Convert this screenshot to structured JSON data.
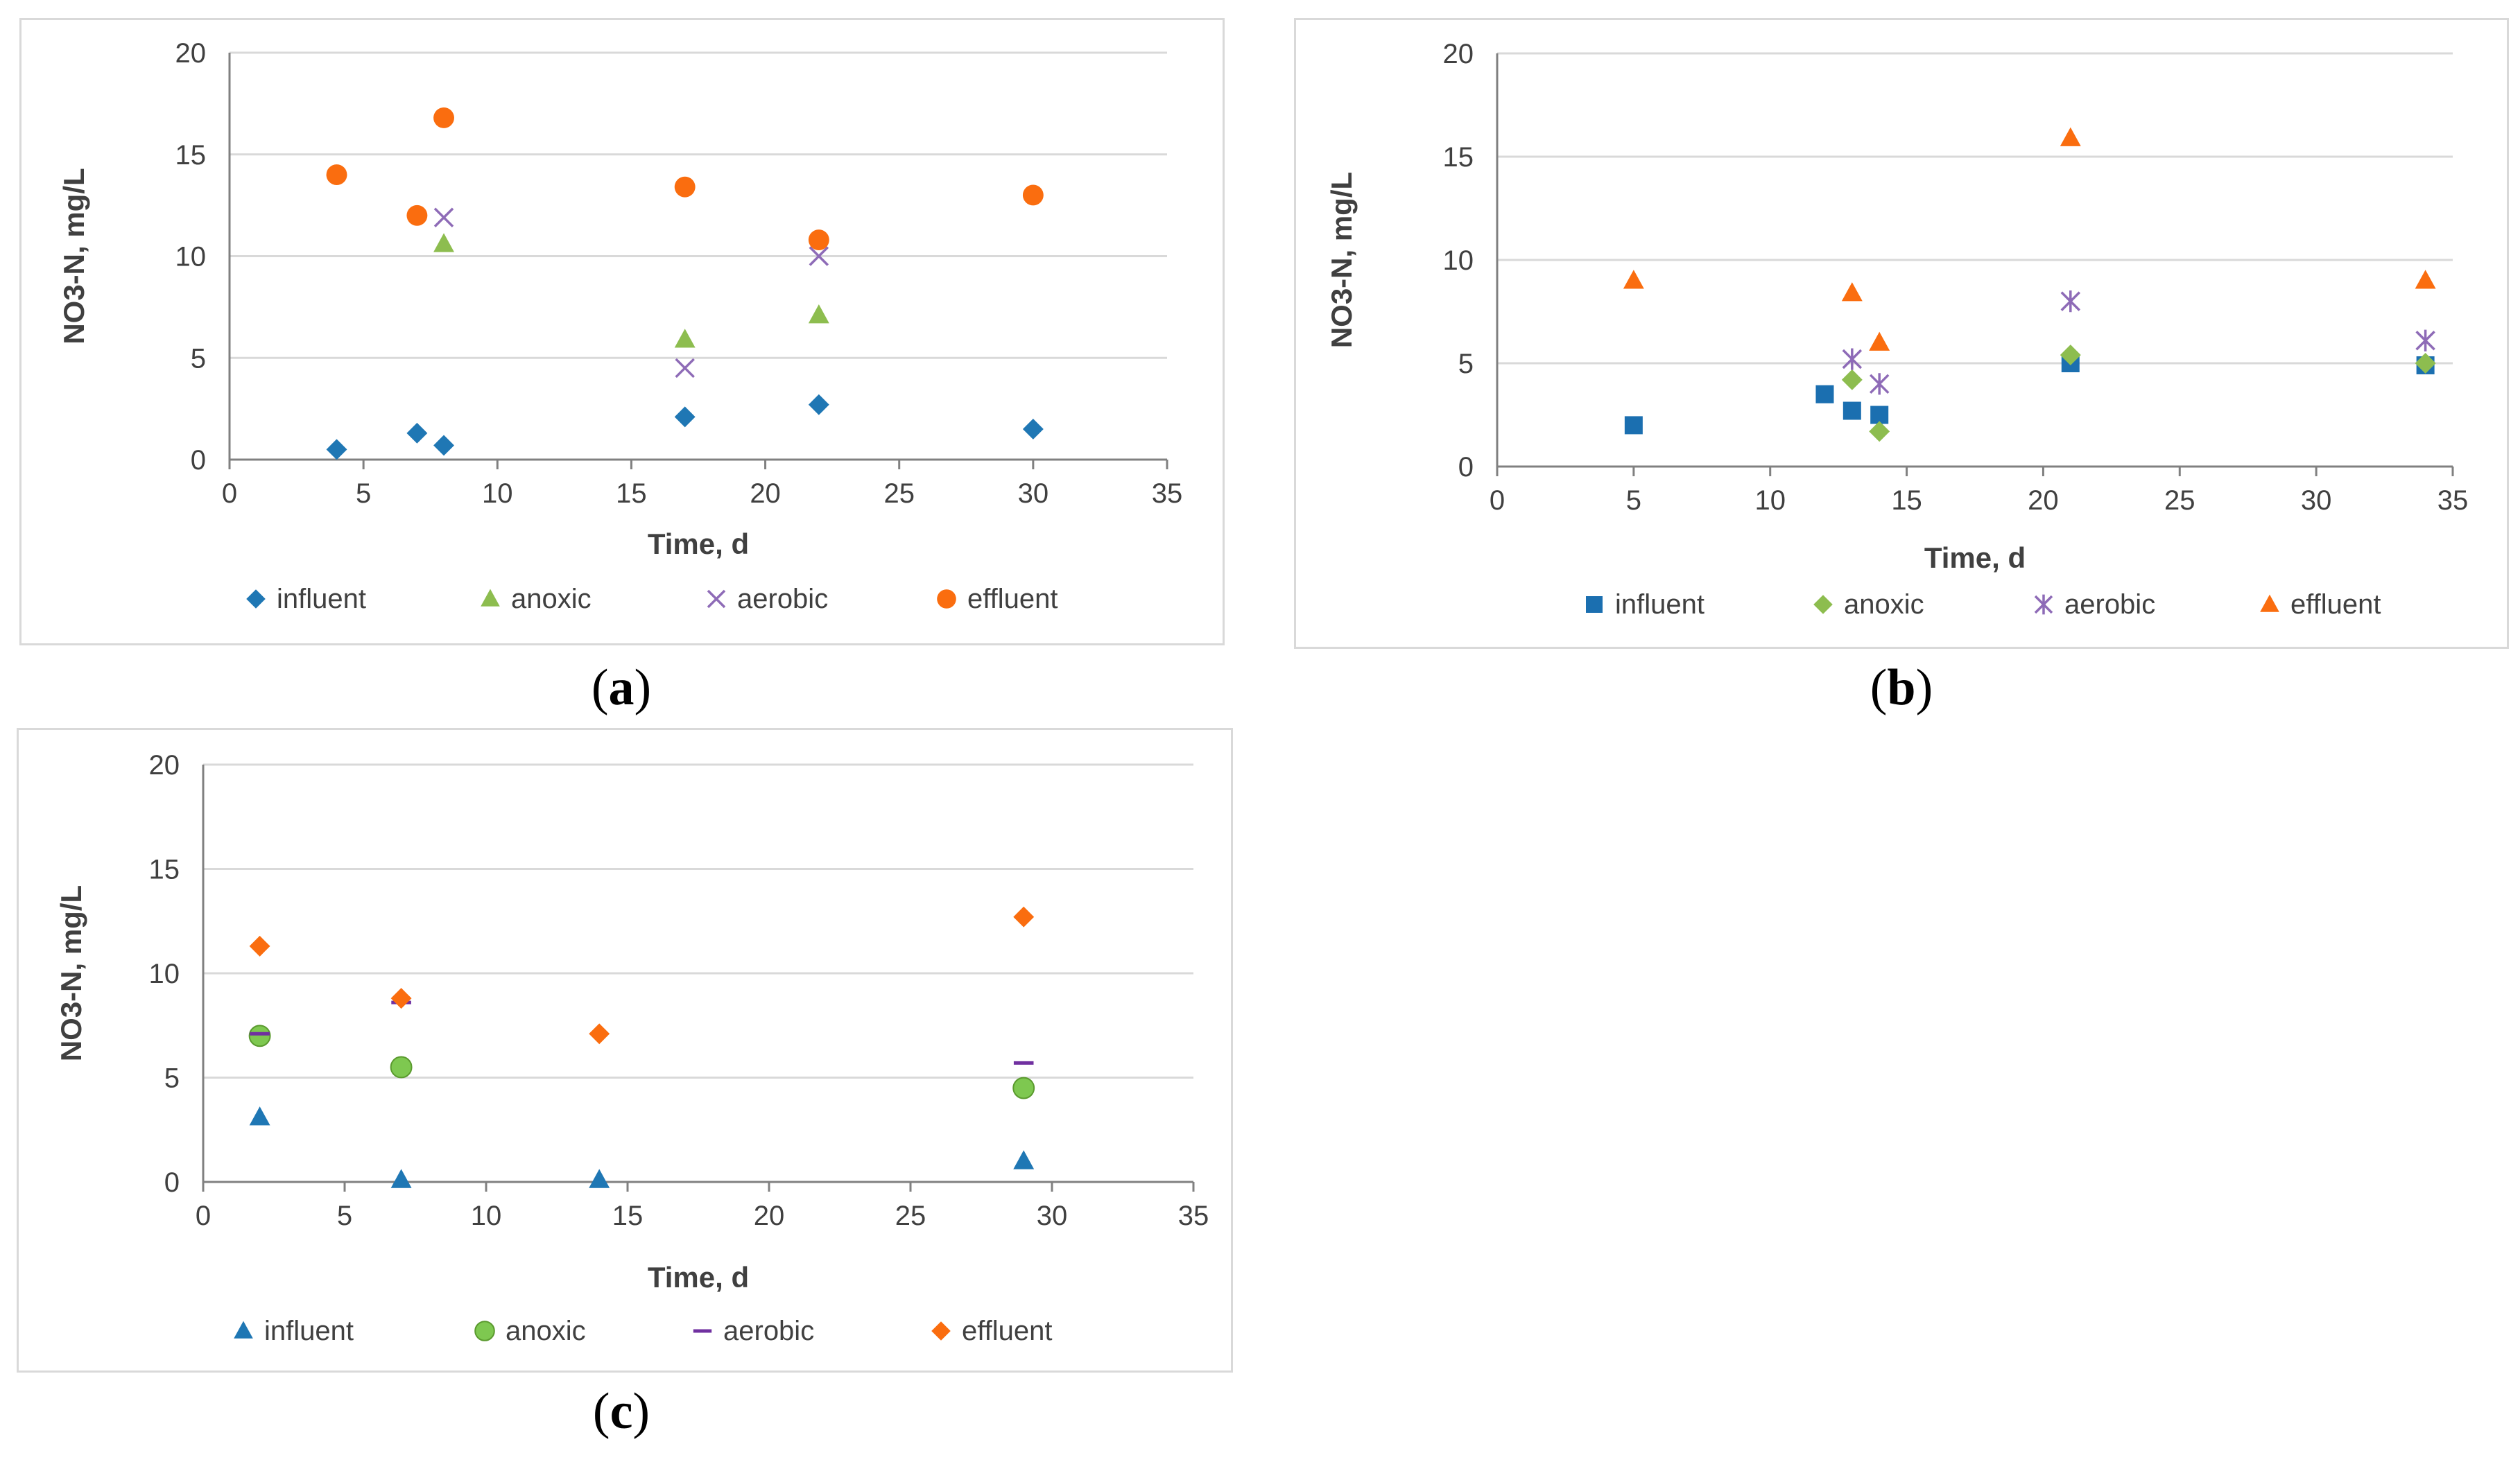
{
  "colors": {
    "blue": "#1f77b4",
    "blue_sq": "#1b6fb0",
    "green": "#8dbd4f",
    "green_circle": "#7ec850",
    "purple": "#8e6bb7",
    "purple_dash": "#7030a0",
    "orange": "#fa6d0f",
    "grid": "#d9d9d9",
    "text": "#404040"
  },
  "chart_data": [
    {
      "id": "a",
      "caption": "a",
      "type": "scatter",
      "xlabel": "Time, d",
      "ylabel": "NO3-N, mg/L",
      "xlim": [
        0,
        35
      ],
      "ylim": [
        0,
        20
      ],
      "xticks": [
        0,
        5,
        10,
        15,
        20,
        25,
        30,
        35
      ],
      "yticks": [
        0,
        5,
        10,
        15,
        20
      ],
      "grid": "horizontal",
      "legend": "bottom",
      "series": [
        {
          "name": "influent",
          "marker": "diamond",
          "color": "#1f77b4",
          "points": [
            [
              4,
              0.5
            ],
            [
              7,
              1.3
            ],
            [
              8,
              0.7
            ],
            [
              17,
              2.1
            ],
            [
              22,
              2.7
            ],
            [
              30,
              1.5
            ]
          ]
        },
        {
          "name": "anoxic",
          "marker": "triangle",
          "color": "#8dbd4f",
          "points": [
            [
              8,
              10.6
            ],
            [
              17,
              5.9
            ],
            [
              22,
              7.1
            ]
          ]
        },
        {
          "name": "aerobic",
          "marker": "x",
          "color": "#8e6bb7",
          "points": [
            [
              8,
              11.9
            ],
            [
              17,
              4.5
            ],
            [
              22,
              10.0
            ]
          ]
        },
        {
          "name": "effluent",
          "marker": "circle",
          "color": "#fa6d0f",
          "points": [
            [
              4,
              14.0
            ],
            [
              7,
              12.0
            ],
            [
              8,
              16.8
            ],
            [
              17,
              13.4
            ],
            [
              22,
              10.8
            ],
            [
              30,
              13.0
            ]
          ]
        }
      ]
    },
    {
      "id": "b",
      "caption": "b",
      "type": "scatter",
      "xlabel": "Time, d",
      "ylabel": "NO3-N, mg/L",
      "xlim": [
        0,
        35
      ],
      "ylim": [
        0,
        20
      ],
      "xticks": [
        0,
        5,
        10,
        15,
        20,
        25,
        30,
        35
      ],
      "yticks": [
        0,
        5,
        10,
        15,
        20
      ],
      "grid": "horizontal",
      "legend": "bottom",
      "series": [
        {
          "name": "influent",
          "marker": "square",
          "color": "#1b6fb0",
          "points": [
            [
              5,
              2.0
            ],
            [
              12,
              3.5
            ],
            [
              13,
              2.7
            ],
            [
              14,
              2.5
            ],
            [
              21,
              5.0
            ],
            [
              34,
              4.9
            ]
          ]
        },
        {
          "name": "anoxic",
          "marker": "diamond",
          "color": "#8dbd4f",
          "points": [
            [
              13,
              4.2
            ],
            [
              14,
              1.7
            ],
            [
              21,
              5.4
            ],
            [
              34,
              5.0
            ]
          ]
        },
        {
          "name": "aerobic",
          "marker": "star",
          "color": "#8e6bb7",
          "points": [
            [
              13,
              5.2
            ],
            [
              14,
              4.0
            ],
            [
              21,
              8.0
            ],
            [
              34,
              6.1
            ]
          ]
        },
        {
          "name": "effluent",
          "marker": "triangle",
          "color": "#fa6d0f",
          "points": [
            [
              5,
              9.0
            ],
            [
              13,
              8.4
            ],
            [
              14,
              6.0
            ],
            [
              21,
              15.9
            ],
            [
              34,
              9.0
            ]
          ]
        }
      ]
    },
    {
      "id": "c",
      "caption": "c",
      "type": "scatter",
      "xlabel": "Time, d",
      "ylabel": "NO3-N, mg/L",
      "xlim": [
        0,
        35
      ],
      "ylim": [
        0,
        20
      ],
      "xticks": [
        0,
        5,
        10,
        15,
        20,
        25,
        30,
        35
      ],
      "yticks": [
        0,
        5,
        10,
        15,
        20
      ],
      "grid": "horizontal",
      "legend": "bottom",
      "series": [
        {
          "name": "influent",
          "marker": "triangle",
          "color": "#1f77b4",
          "points": [
            [
              2,
              3.1
            ],
            [
              7,
              0.1
            ],
            [
              14,
              0.1
            ],
            [
              29,
              1.0
            ]
          ]
        },
        {
          "name": "anoxic",
          "marker": "circle",
          "color": "#7ec850",
          "points": [
            [
              2,
              7.0
            ],
            [
              7,
              5.5
            ],
            [
              29,
              4.5
            ]
          ]
        },
        {
          "name": "aerobic",
          "marker": "dash",
          "color": "#7030a0",
          "points": [
            [
              2,
              7.1
            ],
            [
              7,
              8.6
            ],
            [
              29,
              5.7
            ]
          ]
        },
        {
          "name": "effluent",
          "marker": "diamond",
          "color": "#fa6d0f",
          "points": [
            [
              2,
              11.3
            ],
            [
              7,
              8.8
            ],
            [
              14,
              7.1
            ],
            [
              29,
              12.7
            ]
          ]
        }
      ]
    }
  ]
}
